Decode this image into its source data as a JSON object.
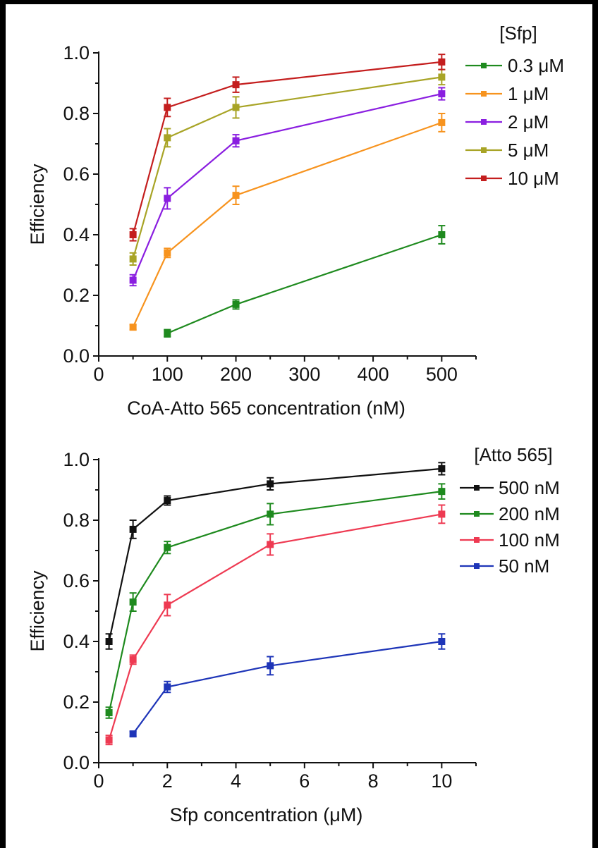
{
  "chart_data": [
    {
      "type": "line",
      "title": "",
      "xlabel": "CoA-Atto 565 concentration (nM)",
      "ylabel": "Efficiency",
      "xlim": [
        0,
        550
      ],
      "ylim": [
        0,
        1.0
      ],
      "xticks": [
        0,
        100,
        200,
        300,
        400,
        500
      ],
      "xtick_labels": [
        "0",
        "100",
        "200",
        "300",
        "400",
        "500"
      ],
      "yticks": [
        0,
        0.2,
        0.4,
        0.6,
        0.8,
        1.0
      ],
      "ytick_labels": [
        "0.0",
        "0.2",
        "0.4",
        "0.6",
        "0.8",
        "1.0"
      ],
      "legend_title": "[Sfp]",
      "legend_position": "top-right",
      "series": [
        {
          "name": "0.3 μM",
          "color": "#1e8a1e",
          "x": [
            100,
            200,
            500
          ],
          "values": [
            0.075,
            0.17,
            0.4
          ],
          "errors": [
            0.012,
            0.015,
            0.03
          ]
        },
        {
          "name": "1 μM",
          "color": "#f7931e",
          "x": [
            50,
            100,
            200,
            500
          ],
          "values": [
            0.095,
            0.34,
            0.53,
            0.77
          ],
          "errors": [
            0.008,
            0.015,
            0.03,
            0.03
          ]
        },
        {
          "name": "2 μM",
          "color": "#8a1ee0",
          "x": [
            50,
            100,
            200,
            500
          ],
          "values": [
            0.25,
            0.52,
            0.71,
            0.865
          ],
          "errors": [
            0.018,
            0.035,
            0.02,
            0.02
          ]
        },
        {
          "name": "5 μM",
          "color": "#a8a426",
          "x": [
            50,
            100,
            200,
            500
          ],
          "values": [
            0.32,
            0.72,
            0.82,
            0.92
          ],
          "errors": [
            0.02,
            0.03,
            0.035,
            0.025
          ]
        },
        {
          "name": "10 μM",
          "color": "#c41e1e",
          "x": [
            50,
            100,
            200,
            500
          ],
          "values": [
            0.4,
            0.82,
            0.895,
            0.97
          ],
          "errors": [
            0.02,
            0.03,
            0.025,
            0.025
          ]
        }
      ]
    },
    {
      "type": "line",
      "title": "",
      "xlabel": "Sfp concentration (μM)",
      "ylabel": "Efficiency",
      "xlim": [
        0,
        11
      ],
      "ylim": [
        0,
        1.0
      ],
      "xticks": [
        0,
        2,
        4,
        6,
        8,
        10
      ],
      "xtick_labels": [
        "0",
        "2",
        "4",
        "6",
        "8",
        "10"
      ],
      "yticks": [
        0,
        0.2,
        0.4,
        0.6,
        0.8,
        1.0
      ],
      "ytick_labels": [
        "0.0",
        "0.2",
        "0.4",
        "0.6",
        "0.8",
        "1.0"
      ],
      "legend_title": "[Atto 565]",
      "legend_position": "top-right",
      "series": [
        {
          "name": "500 nM",
          "color": "#111111",
          "x": [
            0.3,
            1,
            2,
            5,
            10
          ],
          "values": [
            0.4,
            0.77,
            0.865,
            0.92,
            0.97
          ],
          "errors": [
            0.025,
            0.03,
            0.015,
            0.02,
            0.02
          ]
        },
        {
          "name": "200 nM",
          "color": "#1e8a1e",
          "x": [
            0.3,
            1,
            2,
            5,
            10
          ],
          "values": [
            0.165,
            0.53,
            0.71,
            0.82,
            0.895
          ],
          "errors": [
            0.018,
            0.03,
            0.02,
            0.035,
            0.025
          ]
        },
        {
          "name": "100 nM",
          "color": "#ee3a52",
          "x": [
            0.3,
            1,
            2,
            5,
            10
          ],
          "values": [
            0.075,
            0.34,
            0.52,
            0.72,
            0.82
          ],
          "errors": [
            0.015,
            0.015,
            0.035,
            0.035,
            0.03
          ]
        },
        {
          "name": "50 nM",
          "color": "#1e35b8",
          "x": [
            1,
            2,
            5,
            10
          ],
          "values": [
            0.095,
            0.25,
            0.32,
            0.4
          ],
          "errors": [
            0.008,
            0.018,
            0.03,
            0.025
          ]
        }
      ]
    }
  ]
}
